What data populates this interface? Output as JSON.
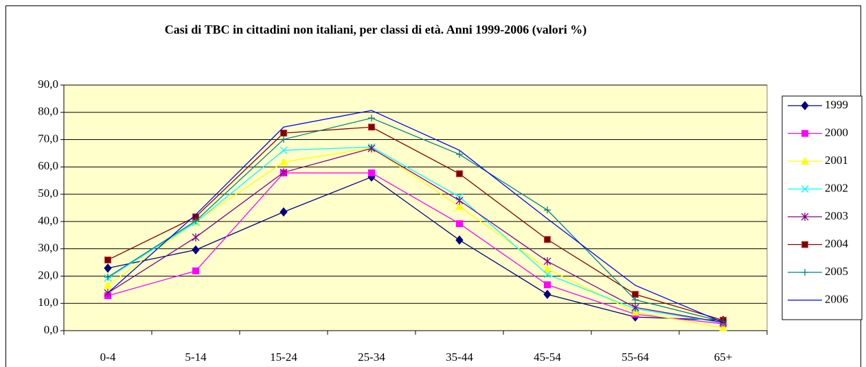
{
  "chart_data": {
    "type": "line",
    "title": "Casi di TBC in cittadini non italiani, per classi di età. Anni 1999-2006 (valori %)",
    "categories": [
      "0-4",
      "5-14",
      "15-24",
      "25-34",
      "35-44",
      "45-54",
      "55-64",
      "65+"
    ],
    "series": [
      {
        "name": "1999",
        "color": "#000080",
        "marker": "diamond",
        "values": [
          22.9,
          29.6,
          43.5,
          56.3,
          33.2,
          13.3,
          5.0,
          3.8
        ]
      },
      {
        "name": "2000",
        "color": "#ff00ff",
        "marker": "square",
        "values": [
          12.8,
          21.9,
          57.8,
          57.8,
          39.2,
          16.8,
          6.0,
          2.5
        ]
      },
      {
        "name": "2001",
        "color": "#ffff00",
        "marker": "triangle",
        "values": [
          16.6,
          40.0,
          61.8,
          67.0,
          45.5,
          22.6,
          6.8,
          1.0
        ]
      },
      {
        "name": "2002",
        "color": "#00ffff",
        "marker": "x",
        "values": [
          19.3,
          39.7,
          66.1,
          67.3,
          49.0,
          20.6,
          8.0,
          2.8
        ]
      },
      {
        "name": "2003",
        "color": "#800080",
        "marker": "star",
        "values": [
          13.8,
          34.2,
          58.0,
          66.8,
          47.7,
          25.4,
          8.5,
          3.0
        ]
      },
      {
        "name": "2004",
        "color": "#800000",
        "marker": "square",
        "values": [
          25.9,
          41.7,
          72.4,
          74.6,
          57.5,
          33.4,
          13.3,
          3.8
        ]
      },
      {
        "name": "2005",
        "color": "#008080",
        "marker": "plus",
        "values": [
          19.6,
          40.2,
          70.1,
          77.9,
          64.6,
          44.2,
          11.3,
          3.3
        ]
      },
      {
        "name": "2006",
        "color": "#0000ff",
        "marker": "none",
        "values": [
          13.8,
          42.5,
          74.6,
          80.7,
          66.1,
          41.0,
          16.6,
          3.0
        ]
      }
    ],
    "ylim": [
      0,
      90
    ],
    "yticks": [
      {
        "value": 0,
        "label": "0,0"
      },
      {
        "value": 10,
        "label": "10,0"
      },
      {
        "value": 20,
        "label": "20,0"
      },
      {
        "value": 30,
        "label": "30,0"
      },
      {
        "value": 40,
        "label": "40,0"
      },
      {
        "value": 50,
        "label": "50,0"
      },
      {
        "value": 60,
        "label": "60,0"
      },
      {
        "value": 70,
        "label": "70,0"
      },
      {
        "value": 80,
        "label": "80,0"
      },
      {
        "value": 90,
        "label": "90,0"
      }
    ],
    "grid": true,
    "legend": "right"
  }
}
